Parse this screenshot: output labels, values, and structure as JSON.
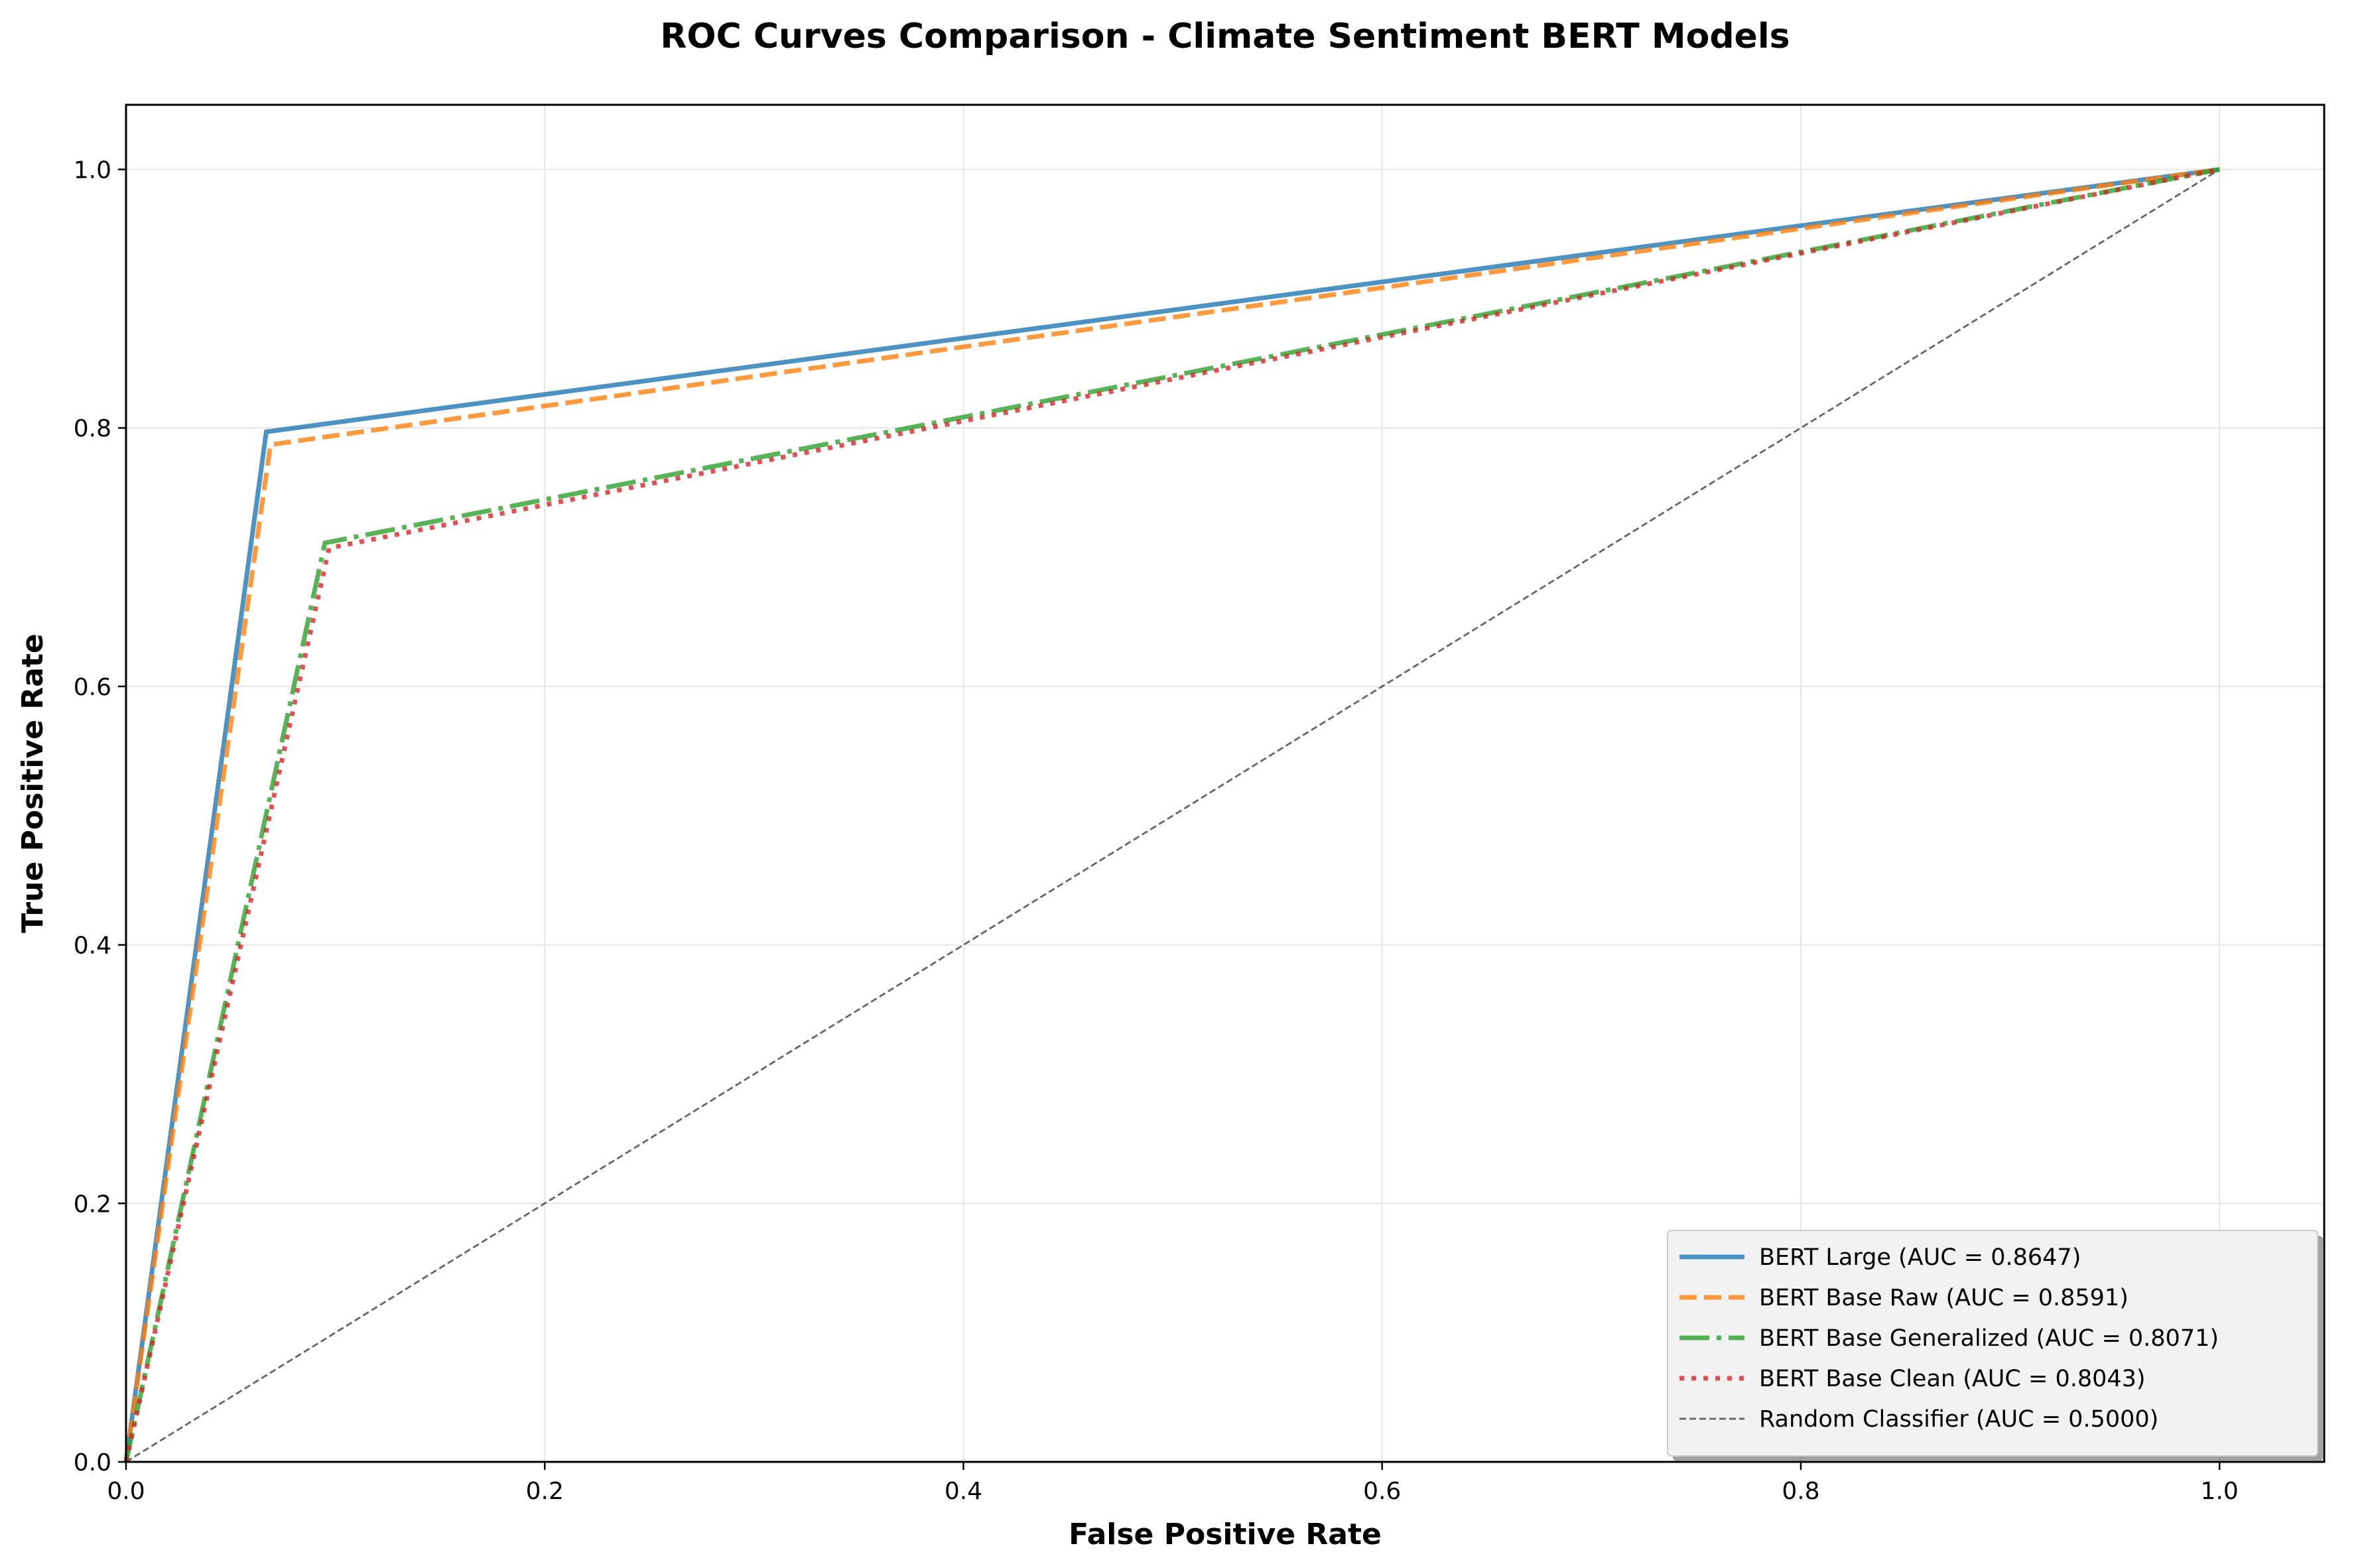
{
  "chart_data": {
    "type": "line",
    "title": "ROC Curves Comparison - Climate Sentiment BERT Models",
    "xlabel": "False Positive Rate",
    "ylabel": "True Positive Rate",
    "xlim": [
      0.0,
      1.05
    ],
    "ylim": [
      0.0,
      1.05
    ],
    "x_ticks": [
      0.0,
      0.2,
      0.4,
      0.6,
      0.8,
      1.0
    ],
    "y_ticks": [
      0.0,
      0.2,
      0.4,
      0.6,
      0.8,
      1.0
    ],
    "x_tick_labels": [
      "0.0",
      "0.2",
      "0.4",
      "0.6",
      "0.8",
      "1.0"
    ],
    "y_tick_labels": [
      "0.0",
      "0.2",
      "0.4",
      "0.6",
      "0.8",
      "1.0"
    ],
    "grid": true,
    "legend_position": "bottom-right",
    "series": [
      {
        "name": "BERT Large (AUC = 0.8647)",
        "color": "#1f77b4",
        "style": "solid",
        "x": [
          0.0,
          0.067,
          1.0
        ],
        "y": [
          0.0,
          0.797,
          1.0
        ]
      },
      {
        "name": "BERT Base Raw (AUC = 0.8591)",
        "color": "#ff7f0e",
        "style": "dashed",
        "x": [
          0.0,
          0.069,
          1.0
        ],
        "y": [
          0.0,
          0.787,
          1.0
        ]
      },
      {
        "name": "BERT Base Generalized (AUC = 0.8071)",
        "color": "#2ca02c",
        "style": "dashdot",
        "x": [
          0.0,
          0.095,
          1.0
        ],
        "y": [
          0.0,
          0.711,
          1.0
        ]
      },
      {
        "name": "BERT Base Clean (AUC = 0.8043)",
        "color": "#d62728",
        "style": "dotted",
        "x": [
          0.0,
          0.097,
          1.0
        ],
        "y": [
          0.0,
          0.707,
          1.0
        ]
      },
      {
        "name": "Random Classifier (AUC = 0.5000)",
        "color": "#000000",
        "style": "thin-dashed",
        "x": [
          0.0,
          1.0
        ],
        "y": [
          0.0,
          1.0
        ]
      }
    ]
  }
}
